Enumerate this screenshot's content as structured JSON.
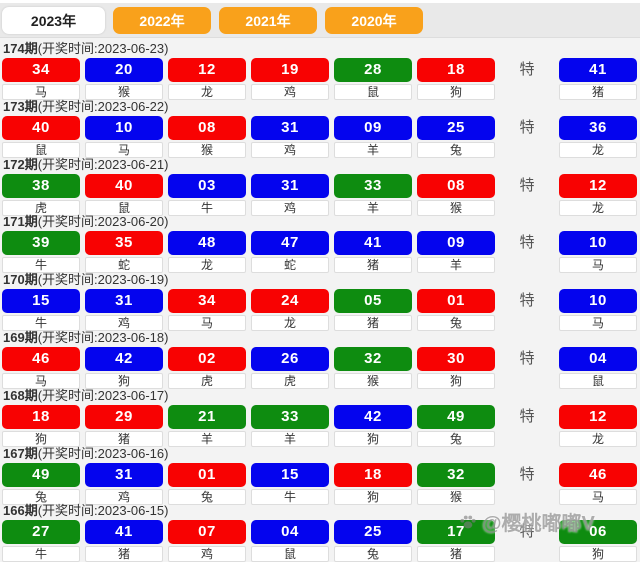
{
  "tabs": [
    {
      "label": "2023年",
      "active": true
    },
    {
      "label": "2022年",
      "active": false
    },
    {
      "label": "2021年",
      "active": false
    },
    {
      "label": "2020年",
      "active": false
    }
  ],
  "labels": {
    "special": "特"
  },
  "colors": {
    "ball_red": "#f80202",
    "ball_blue": "#0404ee",
    "ball_green": "#0e8c10",
    "tab_orange": "#f9a11b",
    "tab_active_bg": "#ffffff"
  },
  "watermark": {
    "icon": "paw-icon",
    "text": "@樱桃嘟嘟V"
  },
  "draws": [
    {
      "period": "174期",
      "time": "(开奖时间:2023-06-23)",
      "numbers": [
        {
          "value": "34",
          "color": "red",
          "zodiac": "马"
        },
        {
          "value": "20",
          "color": "blue",
          "zodiac": "猴"
        },
        {
          "value": "12",
          "color": "red",
          "zodiac": "龙"
        },
        {
          "value": "19",
          "color": "red",
          "zodiac": "鸡"
        },
        {
          "value": "28",
          "color": "green",
          "zodiac": "鼠"
        },
        {
          "value": "18",
          "color": "red",
          "zodiac": "狗"
        }
      ],
      "special": {
        "value": "41",
        "color": "blue",
        "zodiac": "猪"
      }
    },
    {
      "period": "173期",
      "time": "(开奖时间:2023-06-22)",
      "numbers": [
        {
          "value": "40",
          "color": "red",
          "zodiac": "鼠"
        },
        {
          "value": "10",
          "color": "blue",
          "zodiac": "马"
        },
        {
          "value": "08",
          "color": "red",
          "zodiac": "猴"
        },
        {
          "value": "31",
          "color": "blue",
          "zodiac": "鸡"
        },
        {
          "value": "09",
          "color": "blue",
          "zodiac": "羊"
        },
        {
          "value": "25",
          "color": "blue",
          "zodiac": "兔"
        }
      ],
      "special": {
        "value": "36",
        "color": "blue",
        "zodiac": "龙"
      }
    },
    {
      "period": "172期",
      "time": "(开奖时间:2023-06-21)",
      "numbers": [
        {
          "value": "38",
          "color": "green",
          "zodiac": "虎"
        },
        {
          "value": "40",
          "color": "red",
          "zodiac": "鼠"
        },
        {
          "value": "03",
          "color": "blue",
          "zodiac": "牛"
        },
        {
          "value": "31",
          "color": "blue",
          "zodiac": "鸡"
        },
        {
          "value": "33",
          "color": "green",
          "zodiac": "羊"
        },
        {
          "value": "08",
          "color": "red",
          "zodiac": "猴"
        }
      ],
      "special": {
        "value": "12",
        "color": "red",
        "zodiac": "龙"
      }
    },
    {
      "period": "171期",
      "time": "(开奖时间:2023-06-20)",
      "numbers": [
        {
          "value": "39",
          "color": "green",
          "zodiac": "牛"
        },
        {
          "value": "35",
          "color": "red",
          "zodiac": "蛇"
        },
        {
          "value": "48",
          "color": "blue",
          "zodiac": "龙"
        },
        {
          "value": "47",
          "color": "blue",
          "zodiac": "蛇"
        },
        {
          "value": "41",
          "color": "blue",
          "zodiac": "猪"
        },
        {
          "value": "09",
          "color": "blue",
          "zodiac": "羊"
        }
      ],
      "special": {
        "value": "10",
        "color": "blue",
        "zodiac": "马"
      }
    },
    {
      "period": "170期",
      "time": "(开奖时间:2023-06-19)",
      "numbers": [
        {
          "value": "15",
          "color": "blue",
          "zodiac": "牛"
        },
        {
          "value": "31",
          "color": "blue",
          "zodiac": "鸡"
        },
        {
          "value": "34",
          "color": "red",
          "zodiac": "马"
        },
        {
          "value": "24",
          "color": "red",
          "zodiac": "龙"
        },
        {
          "value": "05",
          "color": "green",
          "zodiac": "猪"
        },
        {
          "value": "01",
          "color": "red",
          "zodiac": "兔"
        }
      ],
      "special": {
        "value": "10",
        "color": "blue",
        "zodiac": "马"
      }
    },
    {
      "period": "169期",
      "time": "(开奖时间:2023-06-18)",
      "numbers": [
        {
          "value": "46",
          "color": "red",
          "zodiac": "马"
        },
        {
          "value": "42",
          "color": "blue",
          "zodiac": "狗"
        },
        {
          "value": "02",
          "color": "red",
          "zodiac": "虎"
        },
        {
          "value": "26",
          "color": "blue",
          "zodiac": "虎"
        },
        {
          "value": "32",
          "color": "green",
          "zodiac": "猴"
        },
        {
          "value": "30",
          "color": "red",
          "zodiac": "狗"
        }
      ],
      "special": {
        "value": "04",
        "color": "blue",
        "zodiac": "鼠"
      }
    },
    {
      "period": "168期",
      "time": "(开奖时间:2023-06-17)",
      "numbers": [
        {
          "value": "18",
          "color": "red",
          "zodiac": "狗"
        },
        {
          "value": "29",
          "color": "red",
          "zodiac": "猪"
        },
        {
          "value": "21",
          "color": "green",
          "zodiac": "羊"
        },
        {
          "value": "33",
          "color": "green",
          "zodiac": "羊"
        },
        {
          "value": "42",
          "color": "blue",
          "zodiac": "狗"
        },
        {
          "value": "49",
          "color": "green",
          "zodiac": "兔"
        }
      ],
      "special": {
        "value": "12",
        "color": "red",
        "zodiac": "龙"
      }
    },
    {
      "period": "167期",
      "time": "(开奖时间:2023-06-16)",
      "numbers": [
        {
          "value": "49",
          "color": "green",
          "zodiac": "兔"
        },
        {
          "value": "31",
          "color": "blue",
          "zodiac": "鸡"
        },
        {
          "value": "01",
          "color": "red",
          "zodiac": "兔"
        },
        {
          "value": "15",
          "color": "blue",
          "zodiac": "牛"
        },
        {
          "value": "18",
          "color": "red",
          "zodiac": "狗"
        },
        {
          "value": "32",
          "color": "green",
          "zodiac": "猴"
        }
      ],
      "special": {
        "value": "46",
        "color": "red",
        "zodiac": "马"
      }
    },
    {
      "period": "166期",
      "time": "(开奖时间:2023-06-15)",
      "numbers": [
        {
          "value": "27",
          "color": "green",
          "zodiac": "牛"
        },
        {
          "value": "41",
          "color": "blue",
          "zodiac": "猪"
        },
        {
          "value": "07",
          "color": "red",
          "zodiac": "鸡"
        },
        {
          "value": "04",
          "color": "blue",
          "zodiac": "鼠"
        },
        {
          "value": "25",
          "color": "blue",
          "zodiac": "兔"
        },
        {
          "value": "17",
          "color": "green",
          "zodiac": "猪"
        }
      ],
      "special": {
        "value": "06",
        "color": "green",
        "zodiac": "狗"
      }
    }
  ]
}
